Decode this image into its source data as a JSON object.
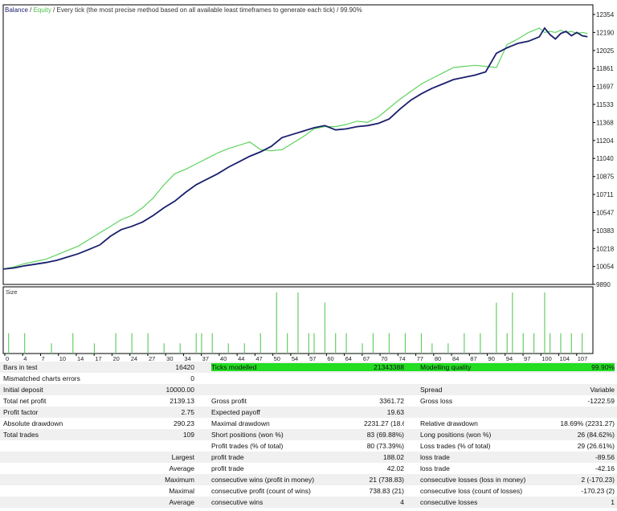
{
  "header": {
    "balance_label": "Balance",
    "sep1": " / ",
    "equity_label": "Equity",
    "rest": " / Every tick (the most precise method based on all available least timeframes to generate each tick) / 99.90%"
  },
  "colors": {
    "balance": "#1a1f6e",
    "equity": "#5fd35f",
    "size_bars": "#66cc66",
    "progress": "#22dd22",
    "grid": "#c8c8c8"
  },
  "size_panel": {
    "label": "Size"
  },
  "chart_data": {
    "type": "line",
    "y_ticks": [
      "12354",
      "12190",
      "12025",
      "11861",
      "11697",
      "11533",
      "11368",
      "11204",
      "11040",
      "10875",
      "10711",
      "10547",
      "10383",
      "10218",
      "10054",
      "9890"
    ],
    "ylim": [
      9890,
      12354
    ],
    "x_ticks": [
      "0",
      "4",
      "7",
      "10",
      "14",
      "17",
      "20",
      "24",
      "27",
      "30",
      "34",
      "37",
      "40",
      "44",
      "47",
      "50",
      "54",
      "57",
      "60",
      "64",
      "67",
      "70",
      "74",
      "77",
      "80",
      "84",
      "87",
      "90",
      "94",
      "97",
      "100",
      "104",
      "107"
    ],
    "xlim": [
      0,
      110
    ],
    "series": [
      {
        "name": "Balance",
        "x": [
          0,
          2,
          4,
          6,
          8,
          10,
          12,
          14,
          16,
          18,
          20,
          22,
          24,
          26,
          28,
          30,
          32,
          34,
          36,
          38,
          40,
          42,
          44,
          46,
          48,
          50,
          52,
          54,
          56,
          58,
          60,
          62,
          64,
          66,
          68,
          70,
          72,
          74,
          76,
          78,
          80,
          82,
          84,
          86,
          88,
          90,
          92,
          94,
          96,
          98,
          100,
          101,
          102,
          103,
          104,
          105,
          106,
          107,
          108,
          109
        ],
        "y": [
          10030,
          10040,
          10060,
          10075,
          10090,
          10110,
          10140,
          10170,
          10210,
          10250,
          10330,
          10390,
          10420,
          10460,
          10520,
          10590,
          10650,
          10730,
          10800,
          10850,
          10900,
          10960,
          11010,
          11060,
          11100,
          11150,
          11230,
          11260,
          11290,
          11320,
          11340,
          11300,
          11310,
          11330,
          11340,
          11360,
          11400,
          11490,
          11570,
          11630,
          11680,
          11720,
          11760,
          11780,
          11800,
          11830,
          12000,
          12050,
          12090,
          12110,
          12150,
          12230,
          12170,
          12130,
          12180,
          12200,
          12160,
          12190,
          12160,
          12150
        ]
      },
      {
        "name": "Equity",
        "x": [
          0,
          2,
          4,
          6,
          8,
          10,
          12,
          14,
          16,
          18,
          20,
          22,
          24,
          26,
          28,
          30,
          32,
          34,
          36,
          38,
          40,
          42,
          44,
          46,
          48,
          50,
          52,
          54,
          56,
          58,
          60,
          62,
          64,
          66,
          68,
          70,
          72,
          74,
          76,
          78,
          80,
          82,
          84,
          86,
          88,
          90,
          92,
          94,
          96,
          98,
          100,
          101,
          102,
          103,
          104,
          105,
          106,
          107,
          108,
          109
        ],
        "y": [
          10030,
          10050,
          10080,
          10100,
          10120,
          10160,
          10200,
          10240,
          10300,
          10360,
          10420,
          10480,
          10520,
          10590,
          10680,
          10800,
          10900,
          10940,
          10990,
          11040,
          11090,
          11130,
          11160,
          11190,
          11120,
          11110,
          11120,
          11180,
          11240,
          11310,
          11330,
          11330,
          11350,
          11380,
          11370,
          11420,
          11500,
          11580,
          11650,
          11720,
          11770,
          11820,
          11870,
          11880,
          11890,
          11880,
          11870,
          12080,
          12130,
          12190,
          12230,
          12190,
          12200,
          12190,
          12210,
          12190,
          12200,
          12180,
          12190,
          12180
        ]
      }
    ],
    "size": {
      "x": [
        1,
        4,
        9,
        13,
        17,
        21,
        24,
        27,
        30,
        33,
        36,
        37,
        39,
        42,
        45,
        48,
        51,
        53,
        55,
        57,
        58,
        60,
        62,
        64,
        67,
        69,
        72,
        75,
        78,
        80,
        83,
        86,
        89,
        92,
        94,
        95,
        97,
        99,
        101,
        102,
        104,
        106,
        108
      ],
      "y": [
        2,
        2,
        1,
        2,
        1,
        2,
        2,
        2,
        1,
        1,
        2,
        2,
        2,
        1,
        1,
        2,
        6,
        2,
        6,
        2,
        2,
        5,
        2,
        2,
        1,
        2,
        2,
        2,
        2,
        1,
        1,
        2,
        2,
        5,
        2,
        6,
        2,
        2,
        6,
        2,
        2,
        2,
        2
      ]
    }
  },
  "report": {
    "rows": [
      [
        "Bars in test",
        "16420",
        "Ticks modelled",
        "21343388",
        "Modelling quality",
        "99.90%"
      ],
      [
        "Mismatched charts errors",
        "0",
        "",
        "",
        "",
        ""
      ],
      [
        "Initial deposit",
        "10000.00",
        "",
        "",
        "Spread",
        "Variable"
      ],
      [
        "Total net profit",
        "2139.13",
        "Gross profit",
        "3361.72",
        "Gross loss",
        "-1222.59"
      ],
      [
        "Profit factor",
        "2.75",
        "Expected payoff",
        "19.63",
        "",
        ""
      ],
      [
        "Absolute drawdown",
        "290.23",
        "Maximal drawdown",
        "2231.27 (18.69%)",
        "Relative drawdown",
        "18.69% (2231.27)"
      ],
      [
        "Total trades",
        "109",
        "Short positions (won %)",
        "83 (69.88%)",
        "Long positions (won %)",
        "26 (84.62%)"
      ],
      [
        "",
        "",
        "Profit trades (% of total)",
        "80 (73.39%)",
        "Loss trades (% of total)",
        "29 (26.61%)"
      ],
      [
        "",
        "Largest",
        "profit trade",
        "188.02",
        "loss trade",
        "-89.56"
      ],
      [
        "",
        "Average",
        "profit trade",
        "42.02",
        "loss trade",
        "-42.16"
      ],
      [
        "",
        "Maximum",
        "consecutive wins (profit in money)",
        "21 (738.83)",
        "consecutive losses (loss in money)",
        "2 (-170.23)"
      ],
      [
        "",
        "Maximal",
        "consecutive profit (count of wins)",
        "738.83 (21)",
        "consecutive loss (count of losses)",
        "-170.23 (2)"
      ],
      [
        "",
        "Average",
        "consecutive wins",
        "4",
        "consecutive losses",
        "1"
      ]
    ],
    "progress_fraction": 0.999
  }
}
